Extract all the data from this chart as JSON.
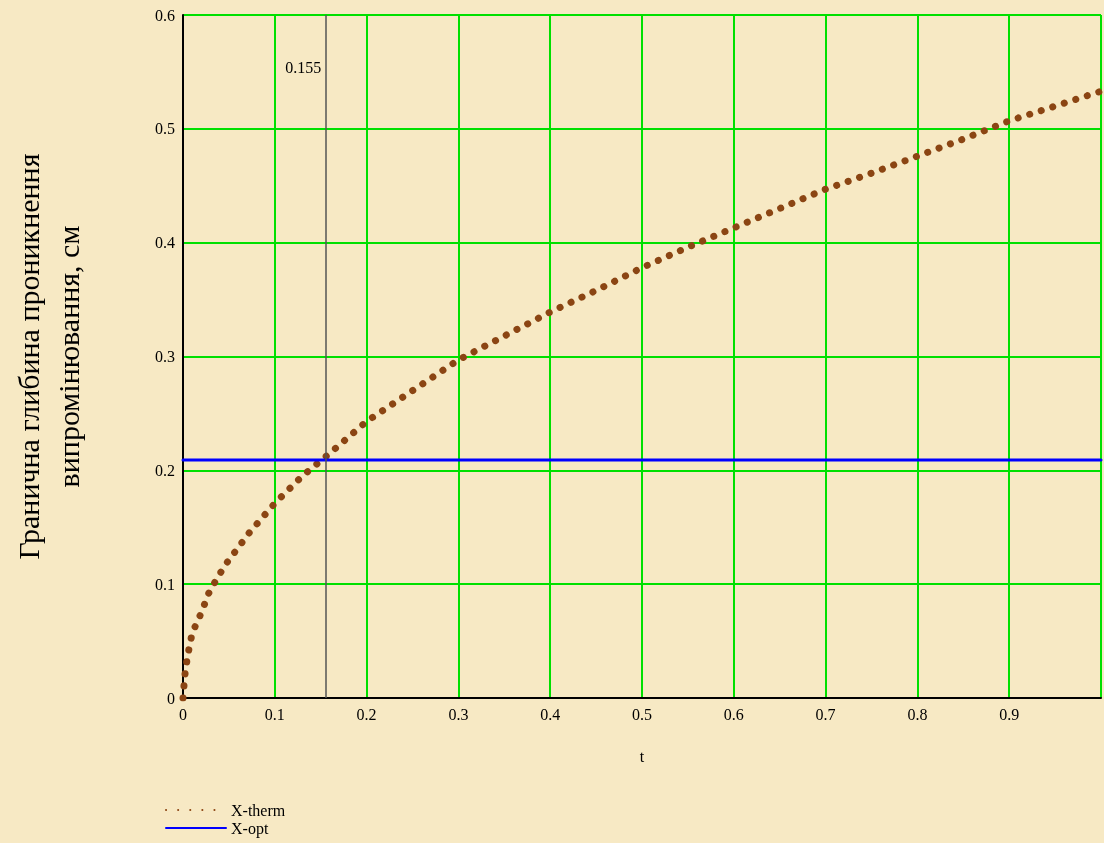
{
  "chart_data": {
    "type": "line",
    "xlabel": "t",
    "ylabel": "Гранична глибина проникнення випромінювання, см",
    "xlim": [
      0,
      1
    ],
    "xticks": [
      0,
      0.1,
      0.2,
      0.3,
      0.4,
      0.5,
      0.6,
      0.7,
      0.8,
      0.9,
      {
        "value": 1,
        "label": null
      }
    ],
    "ylim": [
      0,
      0.6
    ],
    "yticks": [
      0,
      0.1,
      0.2,
      0.3,
      0.4,
      0.5,
      0.6
    ],
    "grid": true,
    "legend": "bottom left",
    "marker": "none",
    "ref_lines": [
      {
        "axis": "x",
        "value": 0.155,
        "label": "0.155",
        "color": "#555555"
      }
    ],
    "series": [
      {
        "name": "X-therm",
        "color": "#8b4513",
        "line_style": "dotted",
        "x": [
          0,
          0.002,
          0.005,
          0.01,
          0.02,
          0.028,
          0.037,
          0.047,
          0.06,
          0.072,
          0.086,
          0.1,
          0.115,
          0.13,
          0.145,
          0.16,
          0.2,
          0.25,
          0.3,
          0.35,
          0.4,
          0.45,
          0.5,
          0.55,
          0.6,
          0.65,
          0.7,
          0.75,
          0.8,
          0.85,
          0.9,
          0.95,
          1.0
        ],
        "values": [
          0,
          0.02,
          0.037,
          0.057,
          0.075,
          0.092,
          0.105,
          0.118,
          0.132,
          0.145,
          0.158,
          0.171,
          0.183,
          0.195,
          0.205,
          0.215,
          0.243,
          0.27,
          0.297,
          0.318,
          0.339,
          0.358,
          0.378,
          0.396,
          0.413,
          0.43,
          0.447,
          0.461,
          0.476,
          0.491,
          0.507,
          0.52,
          0.533
        ]
      },
      {
        "name": "X-opt",
        "color": "#0000ff",
        "line_style": "solid",
        "x": [
          0,
          1
        ],
        "values": [
          0.209,
          0.209
        ]
      }
    ]
  }
}
